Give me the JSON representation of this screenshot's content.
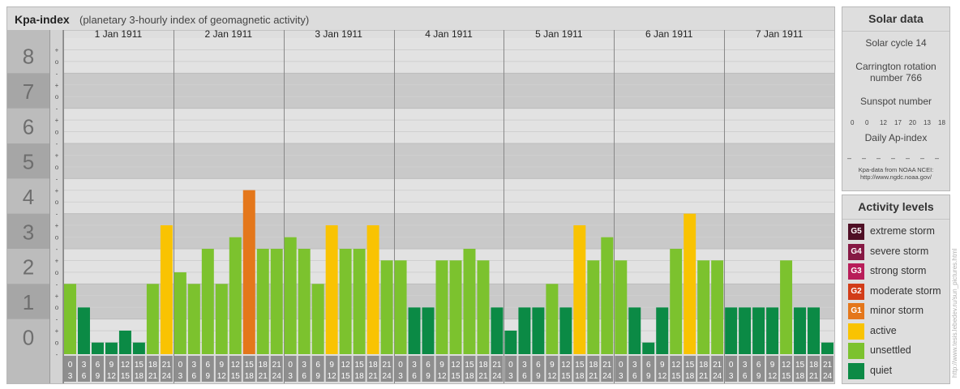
{
  "chart": {
    "title": "Kpa-index",
    "subtitle": "(planetary 3-hourly index of geomagnetic activity)"
  },
  "chart_data": {
    "type": "bar",
    "title": "Kpa-index",
    "subtitle": "(planetary 3-hourly index of geomagnetic activity)",
    "ylim": [
      0,
      9
    ],
    "y_ticks": [
      "0",
      "1",
      "2",
      "3",
      "4",
      "5",
      "6",
      "7",
      "8",
      "9"
    ],
    "y_subticks": [
      "-",
      "o",
      "+"
    ],
    "days": [
      "1 Jan 1911",
      "2 Jan 1911",
      "3 Jan 1911",
      "4 Jan 1911",
      "5 Jan 1911",
      "6 Jan 1911",
      "7 Jan 1911"
    ],
    "interval_start": [
      "0",
      "3",
      "6",
      "9",
      "12",
      "15",
      "18",
      "21"
    ],
    "interval_end": [
      "3",
      "6",
      "9",
      "12",
      "15",
      "18",
      "21",
      "24"
    ],
    "values": [
      [
        2,
        1.33,
        0.33,
        0.33,
        0.67,
        0.33,
        2,
        3.67
      ],
      [
        2.33,
        2,
        3,
        2,
        3.33,
        4.67,
        3,
        3
      ],
      [
        3.33,
        3,
        2,
        3.67,
        3,
        3,
        3.67,
        2.67
      ],
      [
        2.67,
        1.33,
        1.33,
        2.67,
        2.67,
        3,
        2.67,
        1.33
      ],
      [
        0.67,
        1.33,
        1.33,
        2,
        1.33,
        3.67,
        2.67,
        3.33
      ],
      [
        2.67,
        1.33,
        0.33,
        1.33,
        3,
        4,
        2.67,
        2.67
      ],
      [
        1.33,
        1.33,
        1.33,
        1.33,
        2.67,
        1.33,
        1.33,
        0.33
      ]
    ],
    "categories": [
      [
        "unsettled",
        "quiet",
        "quiet",
        "quiet",
        "quiet",
        "quiet",
        "unsettled",
        "active"
      ],
      [
        "unsettled",
        "unsettled",
        "unsettled",
        "unsettled",
        "unsettled",
        "minor storm",
        "unsettled",
        "unsettled"
      ],
      [
        "unsettled",
        "unsettled",
        "unsettled",
        "active",
        "unsettled",
        "unsettled",
        "active",
        "unsettled"
      ],
      [
        "unsettled",
        "quiet",
        "quiet",
        "unsettled",
        "unsettled",
        "unsettled",
        "unsettled",
        "quiet"
      ],
      [
        "quiet",
        "quiet",
        "quiet",
        "unsettled",
        "quiet",
        "active",
        "unsettled",
        "unsettled"
      ],
      [
        "unsettled",
        "quiet",
        "quiet",
        "quiet",
        "unsettled",
        "active",
        "unsettled",
        "unsettled"
      ],
      [
        "quiet",
        "quiet",
        "quiet",
        "quiet",
        "unsettled",
        "quiet",
        "quiet",
        "quiet"
      ]
    ],
    "category_colors": {
      "quiet": "#0b8a45",
      "unsettled": "#7cc22e",
      "active": "#f9c302",
      "minor storm": "#e4771b",
      "moderate storm": "#d23c18",
      "strong storm": "#b81d59",
      "severe storm": "#861944",
      "extreme storm": "#4f0f25"
    }
  },
  "solar": {
    "title": "Solar data",
    "cycle": "Solar cycle 14",
    "carrington": "Carrington rotation number 766",
    "sunspot_label": "Sunspot number",
    "sunspots": [
      "0",
      "0",
      "12",
      "17",
      "20",
      "13",
      "18"
    ],
    "ap_label": "Daily Ap-index",
    "ap": [
      "–",
      "–",
      "–",
      "–",
      "–",
      "–",
      "–"
    ],
    "credit_line1": "Kpa-data from NOAA NCEI:",
    "credit_line2": "http://www.ngdc.noaa.gov/"
  },
  "legend": {
    "title": "Activity levels",
    "items": [
      {
        "code": "G5",
        "label": "extreme storm",
        "color": "#4f0f25"
      },
      {
        "code": "G4",
        "label": "severe storm",
        "color": "#861944"
      },
      {
        "code": "G3",
        "label": "strong storm",
        "color": "#b81d59"
      },
      {
        "code": "G2",
        "label": "moderate storm",
        "color": "#d23c18"
      },
      {
        "code": "G1",
        "label": "minor storm",
        "color": "#e4771b"
      },
      {
        "code": "",
        "label": "active",
        "color": "#f9c302"
      },
      {
        "code": "",
        "label": "unsettled",
        "color": "#7cc22e"
      },
      {
        "code": "",
        "label": "quiet",
        "color": "#0b8a45"
      }
    ]
  },
  "watermark": "http://www.tesis.lebedev.ru/sun_pictures.html"
}
